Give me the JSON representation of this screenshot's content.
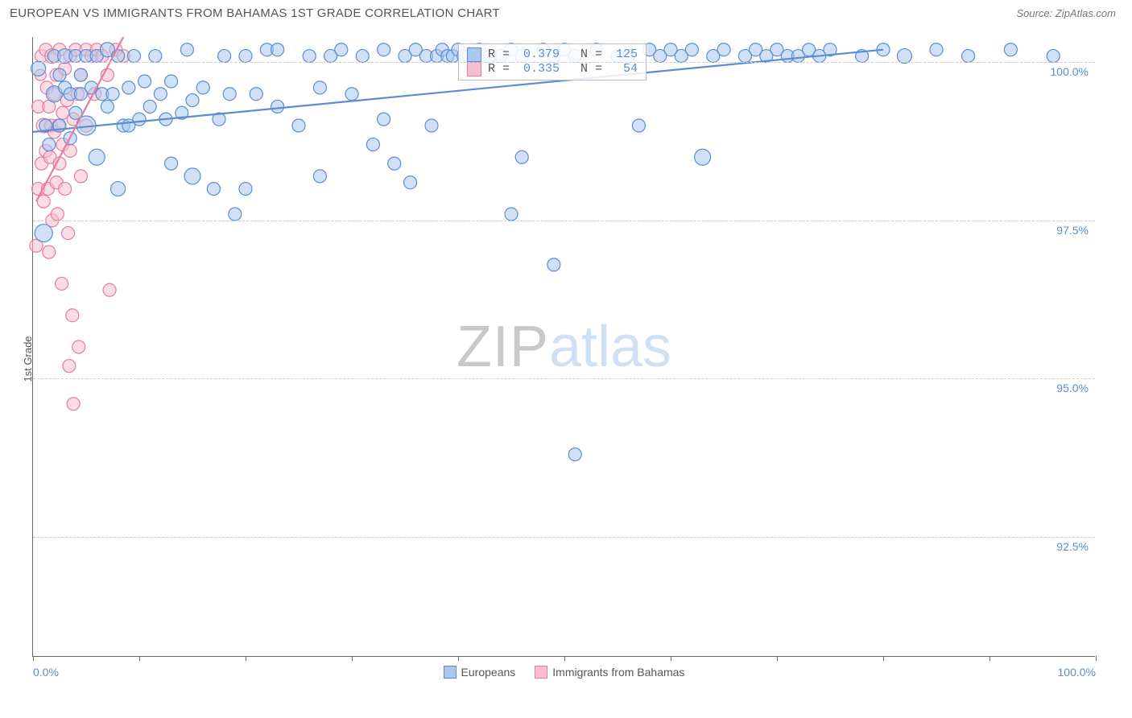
{
  "header": {
    "title": "EUROPEAN VS IMMIGRANTS FROM BAHAMAS 1ST GRADE CORRELATION CHART",
    "source_prefix": "Source: ",
    "source_name": "ZipAtlas.com"
  },
  "chart": {
    "type": "scatter",
    "ylabel": "1st Grade",
    "xlim": [
      0,
      100
    ],
    "ylim": [
      90.6,
      100.4
    ],
    "xtick_positions": [
      0,
      10,
      20,
      30,
      40,
      50,
      60,
      70,
      80,
      90,
      100
    ],
    "xtick_labels": {
      "0": "0.0%",
      "100": "100.0%"
    },
    "ytick_positions": [
      92.5,
      95.0,
      97.5,
      100.0
    ],
    "ytick_labels": [
      "92.5%",
      "95.0%",
      "97.5%",
      "100.0%"
    ],
    "grid_color": "#cccccc",
    "axis_color": "#666666",
    "background_color": "#ffffff",
    "label_color": "#5b8dd6",
    "series": {
      "europeans": {
        "label": "Europeans",
        "color_fill": "#a9c8ec",
        "color_stroke": "#5b8dd6",
        "fill_opacity": 0.55,
        "marker_radius": 9,
        "R": "0.379",
        "N": "125",
        "trend": {
          "x1": 0,
          "y1": 98.9,
          "x2": 80,
          "y2": 100.2
        },
        "points": [
          [
            0.5,
            99.9,
            9
          ],
          [
            1,
            97.3,
            11
          ],
          [
            1.2,
            99.0,
            8
          ],
          [
            1.5,
            98.7,
            8
          ],
          [
            2,
            99.5,
            10
          ],
          [
            2,
            100.1,
            8
          ],
          [
            2.5,
            99.8,
            8
          ],
          [
            2.5,
            99.0,
            8
          ],
          [
            3,
            99.6,
            8
          ],
          [
            3,
            100.1,
            9
          ],
          [
            3.5,
            99.5,
            8
          ],
          [
            3.5,
            98.8,
            8
          ],
          [
            4,
            100.1,
            8
          ],
          [
            4,
            99.2,
            8
          ],
          [
            4.5,
            99.5,
            8
          ],
          [
            4.5,
            99.8,
            8
          ],
          [
            5,
            99.0,
            12
          ],
          [
            5,
            100.1,
            8
          ],
          [
            5.5,
            99.6,
            8
          ],
          [
            6,
            100.1,
            8
          ],
          [
            6,
            98.5,
            10
          ],
          [
            6.5,
            99.5,
            8
          ],
          [
            7,
            99.3,
            8
          ],
          [
            7,
            100.2,
            9
          ],
          [
            7.5,
            99.5,
            8
          ],
          [
            8,
            100.1,
            8
          ],
          [
            8,
            98.0,
            9
          ],
          [
            8.5,
            99.0,
            8
          ],
          [
            9,
            99.6,
            8
          ],
          [
            9,
            99.0,
            8
          ],
          [
            9.5,
            100.1,
            8
          ],
          [
            10,
            99.1,
            8
          ],
          [
            10.5,
            99.7,
            8
          ],
          [
            11,
            99.3,
            8
          ],
          [
            11.5,
            100.1,
            8
          ],
          [
            12,
            99.5,
            8
          ],
          [
            12.5,
            99.1,
            8
          ],
          [
            13,
            98.4,
            8
          ],
          [
            13,
            99.7,
            8
          ],
          [
            14,
            99.2,
            8
          ],
          [
            14.5,
            100.2,
            8
          ],
          [
            15,
            99.4,
            8
          ],
          [
            15,
            98.2,
            10
          ],
          [
            16,
            99.6,
            8
          ],
          [
            17,
            98.0,
            8
          ],
          [
            17.5,
            99.1,
            8
          ],
          [
            18,
            100.1,
            8
          ],
          [
            18.5,
            99.5,
            8
          ],
          [
            19,
            97.6,
            8
          ],
          [
            20,
            100.1,
            8
          ],
          [
            20,
            98.0,
            8
          ],
          [
            21,
            99.5,
            8
          ],
          [
            22,
            100.2,
            8
          ],
          [
            23,
            99.3,
            8
          ],
          [
            23,
            100.2,
            8
          ],
          [
            25,
            99.0,
            8
          ],
          [
            26,
            100.1,
            8
          ],
          [
            27,
            99.6,
            8
          ],
          [
            27,
            98.2,
            8
          ],
          [
            28,
            100.1,
            8
          ],
          [
            29,
            100.2,
            8
          ],
          [
            30,
            99.5,
            8
          ],
          [
            31,
            100.1,
            8
          ],
          [
            32,
            98.7,
            8
          ],
          [
            33,
            99.1,
            8
          ],
          [
            33,
            100.2,
            8
          ],
          [
            34,
            98.4,
            8
          ],
          [
            35,
            100.1,
            8
          ],
          [
            35.5,
            98.1,
            8
          ],
          [
            36,
            100.2,
            8
          ],
          [
            37,
            100.1,
            8
          ],
          [
            37.5,
            99.0,
            8
          ],
          [
            38,
            100.1,
            8
          ],
          [
            38.5,
            100.2,
            8
          ],
          [
            39,
            100.1,
            8
          ],
          [
            39.5,
            100.1,
            8
          ],
          [
            40,
            100.2,
            8
          ],
          [
            40.5,
            100.1,
            8
          ],
          [
            41,
            100.1,
            8
          ],
          [
            42,
            100.2,
            8
          ],
          [
            43,
            100.1,
            8
          ],
          [
            44,
            100.1,
            8
          ],
          [
            45,
            100.2,
            8
          ],
          [
            45,
            97.6,
            8
          ],
          [
            46,
            100.1,
            8
          ],
          [
            46,
            98.5,
            8
          ],
          [
            48,
            100.2,
            8
          ],
          [
            49,
            100.1,
            8
          ],
          [
            49,
            96.8,
            8
          ],
          [
            50,
            100.2,
            8
          ],
          [
            51,
            100.1,
            8
          ],
          [
            51,
            93.8,
            8
          ],
          [
            53,
            100.2,
            8
          ],
          [
            55,
            100.1,
            8
          ],
          [
            56,
            100.1,
            8
          ],
          [
            57,
            99.0,
            8
          ],
          [
            58,
            100.2,
            8
          ],
          [
            59,
            100.1,
            8
          ],
          [
            60,
            100.2,
            8
          ],
          [
            61,
            100.1,
            8
          ],
          [
            62,
            100.2,
            8
          ],
          [
            63,
            98.5,
            10
          ],
          [
            64,
            100.1,
            8
          ],
          [
            65,
            100.2,
            8
          ],
          [
            67,
            100.1,
            8
          ],
          [
            68,
            100.2,
            8
          ],
          [
            69,
            100.1,
            8
          ],
          [
            70,
            100.2,
            8
          ],
          [
            71,
            100.1,
            8
          ],
          [
            72,
            100.1,
            8
          ],
          [
            73,
            100.2,
            8
          ],
          [
            74,
            100.1,
            8
          ],
          [
            75,
            100.2,
            8
          ],
          [
            78,
            100.1,
            8
          ],
          [
            80,
            100.2,
            8
          ],
          [
            82,
            100.1,
            9
          ],
          [
            85,
            100.2,
            8
          ],
          [
            88,
            100.1,
            8
          ],
          [
            92,
            100.2,
            8
          ],
          [
            96,
            100.1,
            8
          ]
        ]
      },
      "bahamas": {
        "label": "Immigrants from Bahamas",
        "color_fill": "#f6bfcf",
        "color_stroke": "#e77ba0",
        "fill_opacity": 0.55,
        "marker_radius": 9,
        "R": "0.335",
        "N": "54",
        "trend": {
          "x1": 0.3,
          "y1": 97.8,
          "x2": 8.5,
          "y2": 100.4
        },
        "points": [
          [
            0.3,
            97.1,
            8
          ],
          [
            0.5,
            99.3,
            8
          ],
          [
            0.5,
            98.0,
            8
          ],
          [
            0.7,
            99.8,
            7
          ],
          [
            0.8,
            100.1,
            8
          ],
          [
            0.8,
            98.4,
            8
          ],
          [
            1.0,
            99.0,
            9
          ],
          [
            1.0,
            97.8,
            8
          ],
          [
            1.2,
            100.2,
            8
          ],
          [
            1.2,
            98.6,
            8
          ],
          [
            1.3,
            99.6,
            8
          ],
          [
            1.4,
            98.0,
            8
          ],
          [
            1.5,
            97.0,
            8
          ],
          [
            1.5,
            99.3,
            8
          ],
          [
            1.6,
            98.5,
            8
          ],
          [
            1.7,
            99.0,
            8
          ],
          [
            1.8,
            100.1,
            9
          ],
          [
            1.8,
            97.5,
            8
          ],
          [
            2.0,
            98.9,
            8
          ],
          [
            2.0,
            99.5,
            8
          ],
          [
            2.2,
            98.1,
            8
          ],
          [
            2.2,
            99.8,
            8
          ],
          [
            2.3,
            97.6,
            8
          ],
          [
            2.4,
            99.0,
            8
          ],
          [
            2.5,
            100.2,
            8
          ],
          [
            2.5,
            98.4,
            8
          ],
          [
            2.7,
            96.5,
            8
          ],
          [
            2.8,
            99.2,
            8
          ],
          [
            2.8,
            98.7,
            8
          ],
          [
            3.0,
            99.9,
            8
          ],
          [
            3.0,
            98.0,
            8
          ],
          [
            3.2,
            99.4,
            8
          ],
          [
            3.3,
            97.3,
            8
          ],
          [
            3.4,
            95.2,
            8
          ],
          [
            3.5,
            100.1,
            8
          ],
          [
            3.5,
            98.6,
            8
          ],
          [
            3.7,
            96.0,
            8
          ],
          [
            3.8,
            94.6,
            8
          ],
          [
            3.8,
            99.1,
            8
          ],
          [
            4.0,
            100.2,
            8
          ],
          [
            4.2,
            99.5,
            8
          ],
          [
            4.3,
            95.5,
            8
          ],
          [
            4.5,
            98.2,
            8
          ],
          [
            4.5,
            99.8,
            8
          ],
          [
            5.0,
            100.2,
            8
          ],
          [
            5.0,
            99.0,
            8
          ],
          [
            5.5,
            100.1,
            8
          ],
          [
            5.8,
            99.5,
            8
          ],
          [
            6.0,
            100.2,
            8
          ],
          [
            6.5,
            100.1,
            8
          ],
          [
            7.0,
            99.8,
            8
          ],
          [
            7.2,
            96.4,
            8
          ],
          [
            7.8,
            100.2,
            8
          ],
          [
            8.5,
            100.1,
            8
          ]
        ]
      }
    },
    "legend": [
      {
        "key": "europeans"
      },
      {
        "key": "bahamas"
      }
    ],
    "stats_box": {
      "rows": [
        {
          "swatch": "europeans",
          "R": "0.379",
          "N": "125"
        },
        {
          "swatch": "bahamas",
          "R": "0.335",
          "N": " 54"
        }
      ]
    },
    "watermark": {
      "zip": "ZIP",
      "atlas": "atlas"
    }
  }
}
